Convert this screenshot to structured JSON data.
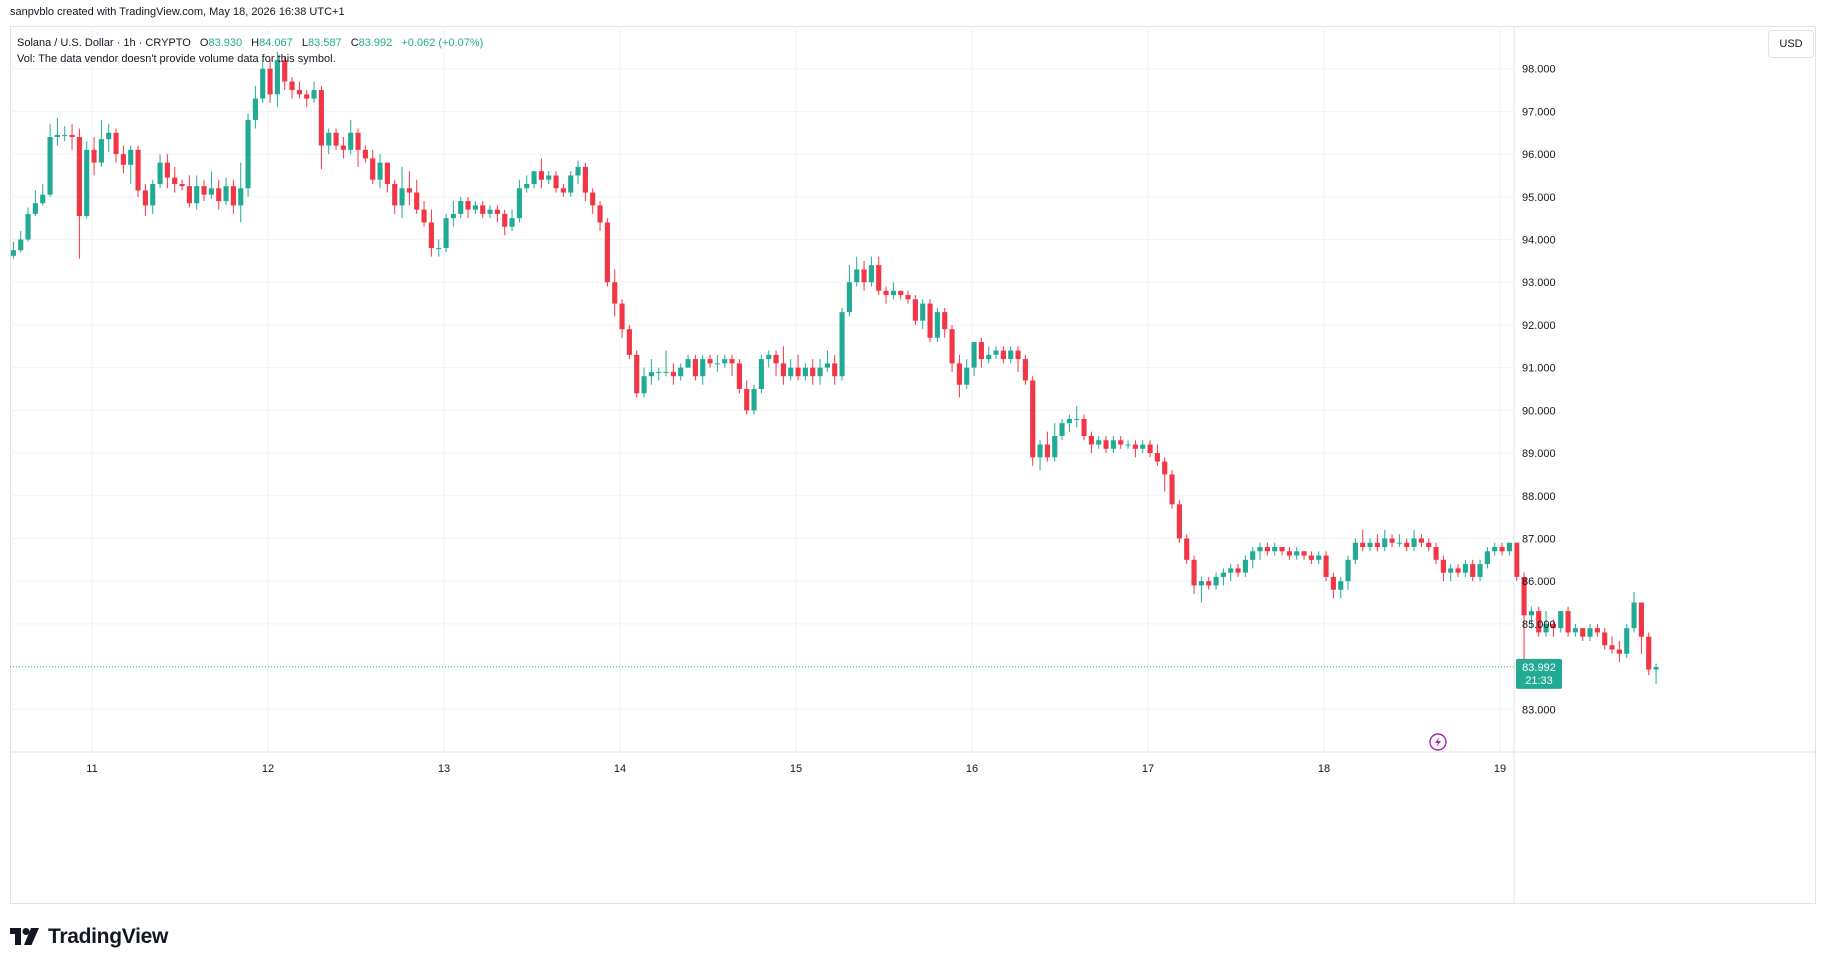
{
  "header": {
    "attribution": "sanpvblo created with TradingView.com, May 18, 2026 16:38 UTC+1"
  },
  "legend": {
    "symbol": "Solana / U.S. Dollar · 1h · CRYPTO",
    "o_label": "O",
    "o_value": "83.930",
    "h_label": "H",
    "h_value": "84.067",
    "l_label": "L",
    "l_value": "83.587",
    "c_label": "C",
    "c_value": "83.992",
    "change": "+0.062 (+0.07%)",
    "vol_line": "Vol: The data vendor doesn't provide volume data for this symbol."
  },
  "scale": {
    "currency": "USD"
  },
  "last_price": {
    "value": "83.992",
    "countdown": "21:33"
  },
  "brand": {
    "name": "TradingView"
  },
  "colors": {
    "up": "#22ab94",
    "down": "#f23645",
    "grid": "#f0f3fa",
    "text": "#131722"
  },
  "chart_data": {
    "type": "candlestick",
    "symbol": "Solana / U.S. Dollar",
    "interval": "1h",
    "x_ticks": [
      "11",
      "12",
      "13",
      "14",
      "15",
      "16",
      "17",
      "18",
      "19"
    ],
    "y_ticks": [
      "98.000",
      "97.000",
      "96.000",
      "95.000",
      "94.000",
      "93.000",
      "92.000",
      "91.000",
      "90.000",
      "89.000",
      "88.000",
      "87.000",
      "86.000",
      "85.000",
      "84.000",
      "83.000"
    ],
    "ylim": [
      82.0,
      99.0
    ],
    "start_day": 10.47,
    "grid": true,
    "candles": [
      [
        93.55,
        93.28,
        93.65,
        93.22
      ],
      [
        93.28,
        93.62,
        93.7,
        93.2
      ],
      [
        93.62,
        93.75,
        93.95,
        93.55
      ],
      [
        93.75,
        94.0,
        94.2,
        93.7
      ],
      [
        94.0,
        94.6,
        94.75,
        93.95
      ],
      [
        94.6,
        94.85,
        95.15,
        94.55
      ],
      [
        94.85,
        95.05,
        95.3,
        94.8
      ],
      [
        95.05,
        96.4,
        96.7,
        95.0
      ],
      [
        96.4,
        96.45,
        96.85,
        96.2
      ],
      [
        96.45,
        96.45,
        96.65,
        96.3
      ],
      [
        96.45,
        96.4,
        96.7,
        96.1
      ],
      [
        96.4,
        94.55,
        96.6,
        93.55
      ],
      [
        94.55,
        96.1,
        96.3,
        94.5
      ],
      [
        96.1,
        95.8,
        96.4,
        95.5
      ],
      [
        95.8,
        96.35,
        96.8,
        95.7
      ],
      [
        96.35,
        96.5,
        96.7,
        96.05
      ],
      [
        96.5,
        96.0,
        96.6,
        95.8
      ],
      [
        96.0,
        95.75,
        96.2,
        95.55
      ],
      [
        95.75,
        96.1,
        96.2,
        95.3
      ],
      [
        96.1,
        95.15,
        96.2,
        95.0
      ],
      [
        95.15,
        94.8,
        95.3,
        94.55
      ],
      [
        94.8,
        95.3,
        95.4,
        94.6
      ],
      [
        95.3,
        95.8,
        96.0,
        95.2
      ],
      [
        95.8,
        95.45,
        96.0,
        95.2
      ],
      [
        95.45,
        95.3,
        95.7,
        95.1
      ],
      [
        95.3,
        95.25,
        95.4,
        95.15
      ],
      [
        95.25,
        94.85,
        95.5,
        94.75
      ],
      [
        94.85,
        95.25,
        95.5,
        94.7
      ],
      [
        95.25,
        95.05,
        95.4,
        94.9
      ],
      [
        95.05,
        95.2,
        95.6,
        94.95
      ],
      [
        95.2,
        94.9,
        95.4,
        94.7
      ],
      [
        94.9,
        95.25,
        95.45,
        94.8
      ],
      [
        95.25,
        94.8,
        95.4,
        94.6
      ],
      [
        94.8,
        95.2,
        95.8,
        94.4
      ],
      [
        95.2,
        96.8,
        96.95,
        95.0
      ],
      [
        96.8,
        97.3,
        97.6,
        96.6
      ],
      [
        97.3,
        98.0,
        98.2,
        97.2
      ],
      [
        98.0,
        97.4,
        98.2,
        97.2
      ],
      [
        97.4,
        98.2,
        98.4,
        97.1
      ],
      [
        98.2,
        97.7,
        98.3,
        97.5
      ],
      [
        97.7,
        97.5,
        97.8,
        97.3
      ],
      [
        97.5,
        97.4,
        97.7,
        97.3
      ],
      [
        97.4,
        97.3,
        97.5,
        97.1
      ],
      [
        97.3,
        97.5,
        97.7,
        97.2
      ],
      [
        97.5,
        96.2,
        97.6,
        95.65
      ],
      [
        96.2,
        96.5,
        96.6,
        96.0
      ],
      [
        96.5,
        96.2,
        96.6,
        96.1
      ],
      [
        96.2,
        96.1,
        96.4,
        95.9
      ],
      [
        96.1,
        96.5,
        96.8,
        96.0
      ],
      [
        96.5,
        96.1,
        96.6,
        95.7
      ],
      [
        96.1,
        95.9,
        96.2,
        95.8
      ],
      [
        95.9,
        95.4,
        96.1,
        95.3
      ],
      [
        95.4,
        95.8,
        96.0,
        95.2
      ],
      [
        95.8,
        95.3,
        95.8,
        95.1
      ],
      [
        95.3,
        94.8,
        95.4,
        94.6
      ],
      [
        94.8,
        95.2,
        95.7,
        94.5
      ],
      [
        95.2,
        95.1,
        95.6,
        94.8
      ],
      [
        95.1,
        94.7,
        95.4,
        94.6
      ],
      [
        94.7,
        94.4,
        94.9,
        94.3
      ],
      [
        94.4,
        93.8,
        94.7,
        93.6
      ],
      [
        93.8,
        93.8,
        94.0,
        93.6
      ],
      [
        93.8,
        94.5,
        94.6,
        93.7
      ],
      [
        94.5,
        94.6,
        94.9,
        94.3
      ],
      [
        94.6,
        94.9,
        95.0,
        94.5
      ],
      [
        94.9,
        94.7,
        95.0,
        94.5
      ],
      [
        94.7,
        94.8,
        94.9,
        94.6
      ],
      [
        94.8,
        94.6,
        94.9,
        94.5
      ],
      [
        94.6,
        94.7,
        94.8,
        94.5
      ],
      [
        94.7,
        94.6,
        94.8,
        94.4
      ],
      [
        94.6,
        94.3,
        94.7,
        94.1
      ],
      [
        94.3,
        94.5,
        94.7,
        94.2
      ],
      [
        94.5,
        95.2,
        95.4,
        94.4
      ],
      [
        95.2,
        95.3,
        95.5,
        95.1
      ],
      [
        95.3,
        95.6,
        95.6,
        95.2
      ],
      [
        95.6,
        95.4,
        95.9,
        95.2
      ],
      [
        95.4,
        95.5,
        95.6,
        95.3
      ],
      [
        95.5,
        95.2,
        95.6,
        95.1
      ],
      [
        95.2,
        95.1,
        95.3,
        95.0
      ],
      [
        95.1,
        95.5,
        95.6,
        95.0
      ],
      [
        95.5,
        95.7,
        95.85,
        95.3
      ],
      [
        95.7,
        95.1,
        95.8,
        94.9
      ],
      [
        95.1,
        94.8,
        95.2,
        94.6
      ],
      [
        94.8,
        94.4,
        94.9,
        94.2
      ],
      [
        94.4,
        93.0,
        94.5,
        92.9
      ],
      [
        93.0,
        92.5,
        93.3,
        92.2
      ],
      [
        92.5,
        91.9,
        92.6,
        91.7
      ],
      [
        91.9,
        91.3,
        92.0,
        91.2
      ],
      [
        91.3,
        90.4,
        91.4,
        90.3
      ],
      [
        90.4,
        90.8,
        91.0,
        90.3
      ],
      [
        90.8,
        90.9,
        91.2,
        90.6
      ],
      [
        90.9,
        90.9,
        91.0,
        90.7
      ],
      [
        90.9,
        90.9,
        91.4,
        90.8
      ],
      [
        90.9,
        90.8,
        91.1,
        90.6
      ],
      [
        90.8,
        91.0,
        91.1,
        90.7
      ],
      [
        91.0,
        91.2,
        91.3,
        91.0
      ],
      [
        91.2,
        90.8,
        91.3,
        90.7
      ],
      [
        90.8,
        91.2,
        91.3,
        90.6
      ],
      [
        91.2,
        91.1,
        91.3,
        91.0
      ],
      [
        91.1,
        91.1,
        91.3,
        90.9
      ],
      [
        91.1,
        91.2,
        91.3,
        91.0
      ],
      [
        91.2,
        91.1,
        91.3,
        90.8
      ],
      [
        91.1,
        90.5,
        91.2,
        90.4
      ],
      [
        90.5,
        90.0,
        90.7,
        89.9
      ],
      [
        90.0,
        90.5,
        90.6,
        89.9
      ],
      [
        90.5,
        91.2,
        91.3,
        90.4
      ],
      [
        91.2,
        91.3,
        91.4,
        91.0
      ],
      [
        91.3,
        91.1,
        91.4,
        90.8
      ],
      [
        91.1,
        90.8,
        91.5,
        90.6
      ],
      [
        90.8,
        91.0,
        91.2,
        90.7
      ],
      [
        91.0,
        90.8,
        91.3,
        90.7
      ],
      [
        90.8,
        91.0,
        91.1,
        90.7
      ],
      [
        91.0,
        90.8,
        91.2,
        90.6
      ],
      [
        90.8,
        91.0,
        91.2,
        90.6
      ],
      [
        91.0,
        91.1,
        91.4,
        90.9
      ],
      [
        91.1,
        90.8,
        91.3,
        90.6
      ],
      [
        90.8,
        92.3,
        92.4,
        90.7
      ],
      [
        92.3,
        93.0,
        93.4,
        92.2
      ],
      [
        93.0,
        93.3,
        93.6,
        92.9
      ],
      [
        93.3,
        93.0,
        93.5,
        92.8
      ],
      [
        93.0,
        93.4,
        93.6,
        92.9
      ],
      [
        93.4,
        92.8,
        93.6,
        92.7
      ],
      [
        92.8,
        92.7,
        92.9,
        92.5
      ],
      [
        92.7,
        92.8,
        93.0,
        92.6
      ],
      [
        92.8,
        92.7,
        92.8,
        92.6
      ],
      [
        92.7,
        92.6,
        92.8,
        92.5
      ],
      [
        92.6,
        92.1,
        92.7,
        92.0
      ],
      [
        92.1,
        92.5,
        92.6,
        91.9
      ],
      [
        92.5,
        91.7,
        92.6,
        91.6
      ],
      [
        91.7,
        92.3,
        92.4,
        91.6
      ],
      [
        92.3,
        91.9,
        92.4,
        91.7
      ],
      [
        91.9,
        91.1,
        92.0,
        90.9
      ],
      [
        91.1,
        90.6,
        91.3,
        90.3
      ],
      [
        90.6,
        91.0,
        91.2,
        90.5
      ],
      [
        91.0,
        91.6,
        91.6,
        90.8
      ],
      [
        91.6,
        91.2,
        91.7,
        91.0
      ],
      [
        91.2,
        91.3,
        91.5,
        91.1
      ],
      [
        91.3,
        91.4,
        91.5,
        91.2
      ],
      [
        91.4,
        91.2,
        91.5,
        91.1
      ],
      [
        91.2,
        91.4,
        91.5,
        91.1
      ],
      [
        91.4,
        91.2,
        91.5,
        90.9
      ],
      [
        91.2,
        90.7,
        91.3,
        90.6
      ],
      [
        90.7,
        88.9,
        90.8,
        88.7
      ],
      [
        88.9,
        89.2,
        89.3,
        88.6
      ],
      [
        89.2,
        88.9,
        89.5,
        88.8
      ],
      [
        88.9,
        89.4,
        89.7,
        88.8
      ],
      [
        89.4,
        89.7,
        89.8,
        89.3
      ],
      [
        89.7,
        89.8,
        89.9,
        89.5
      ],
      [
        89.8,
        89.8,
        90.1,
        89.6
      ],
      [
        89.8,
        89.4,
        89.9,
        89.3
      ],
      [
        89.4,
        89.2,
        89.5,
        89.0
      ],
      [
        89.2,
        89.3,
        89.4,
        89.1
      ],
      [
        89.3,
        89.1,
        89.4,
        89.0
      ],
      [
        89.1,
        89.3,
        89.4,
        89.0
      ],
      [
        89.3,
        89.2,
        89.4,
        89.1
      ],
      [
        89.2,
        89.2,
        89.3,
        89.1
      ],
      [
        89.2,
        89.1,
        89.3,
        88.9
      ],
      [
        89.1,
        89.2,
        89.3,
        89.0
      ],
      [
        89.2,
        89.0,
        89.3,
        88.9
      ],
      [
        89.0,
        88.8,
        89.2,
        88.7
      ],
      [
        88.8,
        88.5,
        88.9,
        88.1
      ],
      [
        88.5,
        87.8,
        88.6,
        87.7
      ],
      [
        87.8,
        87.0,
        87.9,
        86.9
      ],
      [
        87.0,
        86.5,
        87.1,
        86.4
      ],
      [
        86.5,
        85.9,
        86.6,
        85.7
      ],
      [
        85.9,
        86.0,
        86.1,
        85.5
      ],
      [
        86.0,
        85.9,
        86.1,
        85.8
      ],
      [
        85.9,
        86.1,
        86.2,
        85.8
      ],
      [
        86.1,
        86.2,
        86.3,
        85.9
      ],
      [
        86.2,
        86.3,
        86.4,
        86.0
      ],
      [
        86.3,
        86.2,
        86.4,
        86.1
      ],
      [
        86.2,
        86.5,
        86.6,
        86.1
      ],
      [
        86.5,
        86.7,
        86.8,
        86.3
      ],
      [
        86.7,
        86.8,
        86.9,
        86.5
      ],
      [
        86.8,
        86.7,
        86.9,
        86.6
      ],
      [
        86.7,
        86.8,
        86.9,
        86.6
      ],
      [
        86.8,
        86.7,
        86.8,
        86.6
      ],
      [
        86.7,
        86.6,
        86.8,
        86.5
      ],
      [
        86.6,
        86.7,
        86.8,
        86.5
      ],
      [
        86.7,
        86.6,
        86.7,
        86.5
      ],
      [
        86.6,
        86.5,
        86.7,
        86.4
      ],
      [
        86.5,
        86.6,
        86.7,
        86.4
      ],
      [
        86.6,
        86.1,
        86.7,
        86.0
      ],
      [
        86.1,
        85.8,
        86.2,
        85.6
      ],
      [
        85.8,
        86.0,
        86.1,
        85.6
      ],
      [
        86.0,
        86.5,
        86.6,
        85.8
      ],
      [
        86.5,
        86.9,
        87.0,
        86.4
      ],
      [
        86.9,
        86.8,
        87.2,
        86.7
      ],
      [
        86.8,
        86.9,
        87.0,
        86.7
      ],
      [
        86.9,
        86.8,
        87.1,
        86.7
      ],
      [
        86.8,
        87.0,
        87.2,
        86.7
      ],
      [
        87.0,
        86.9,
        87.1,
        86.8
      ],
      [
        86.9,
        86.9,
        87.1,
        86.8
      ],
      [
        86.9,
        86.8,
        87.0,
        86.7
      ],
      [
        86.8,
        87.0,
        87.2,
        86.7
      ],
      [
        87.0,
        86.9,
        87.1,
        86.8
      ],
      [
        86.9,
        86.8,
        87.0,
        86.7
      ],
      [
        86.8,
        86.5,
        86.9,
        86.4
      ],
      [
        86.5,
        86.2,
        86.6,
        86.0
      ],
      [
        86.2,
        86.3,
        86.4,
        86.0
      ],
      [
        86.3,
        86.2,
        86.4,
        86.1
      ],
      [
        86.2,
        86.4,
        86.5,
        86.1
      ],
      [
        86.4,
        86.1,
        86.5,
        86.0
      ],
      [
        86.1,
        86.4,
        86.5,
        86.0
      ],
      [
        86.4,
        86.7,
        86.8,
        86.3
      ],
      [
        86.7,
        86.8,
        86.9,
        86.6
      ],
      [
        86.8,
        86.7,
        86.9,
        86.6
      ],
      [
        86.7,
        86.9,
        86.9,
        86.6
      ],
      [
        86.9,
        86.1,
        86.9,
        86.0
      ],
      [
        86.1,
        85.2,
        86.2,
        83.5
      ],
      [
        85.2,
        85.3,
        85.4,
        84.9
      ],
      [
        85.3,
        84.8,
        85.4,
        84.7
      ],
      [
        84.8,
        85.0,
        85.3,
        84.7
      ],
      [
        85.0,
        84.9,
        85.1,
        84.7
      ],
      [
        84.9,
        85.3,
        85.3,
        84.8
      ],
      [
        85.3,
        84.8,
        85.4,
        84.7
      ],
      [
        84.8,
        84.9,
        85.0,
        84.7
      ],
      [
        84.9,
        84.7,
        84.9,
        84.6
      ],
      [
        84.7,
        84.9,
        85.0,
        84.6
      ],
      [
        84.9,
        84.8,
        85.0,
        84.7
      ],
      [
        84.8,
        84.5,
        84.9,
        84.4
      ],
      [
        84.5,
        84.4,
        84.7,
        84.3
      ],
      [
        84.4,
        84.3,
        84.6,
        84.1
      ],
      [
        84.3,
        84.9,
        85.0,
        84.2
      ],
      [
        84.9,
        85.5,
        85.75,
        84.8
      ],
      [
        85.5,
        84.7,
        85.5,
        84.3
      ],
      [
        84.7,
        83.93,
        84.8,
        83.8
      ],
      [
        83.93,
        83.99,
        84.07,
        83.59
      ]
    ]
  }
}
